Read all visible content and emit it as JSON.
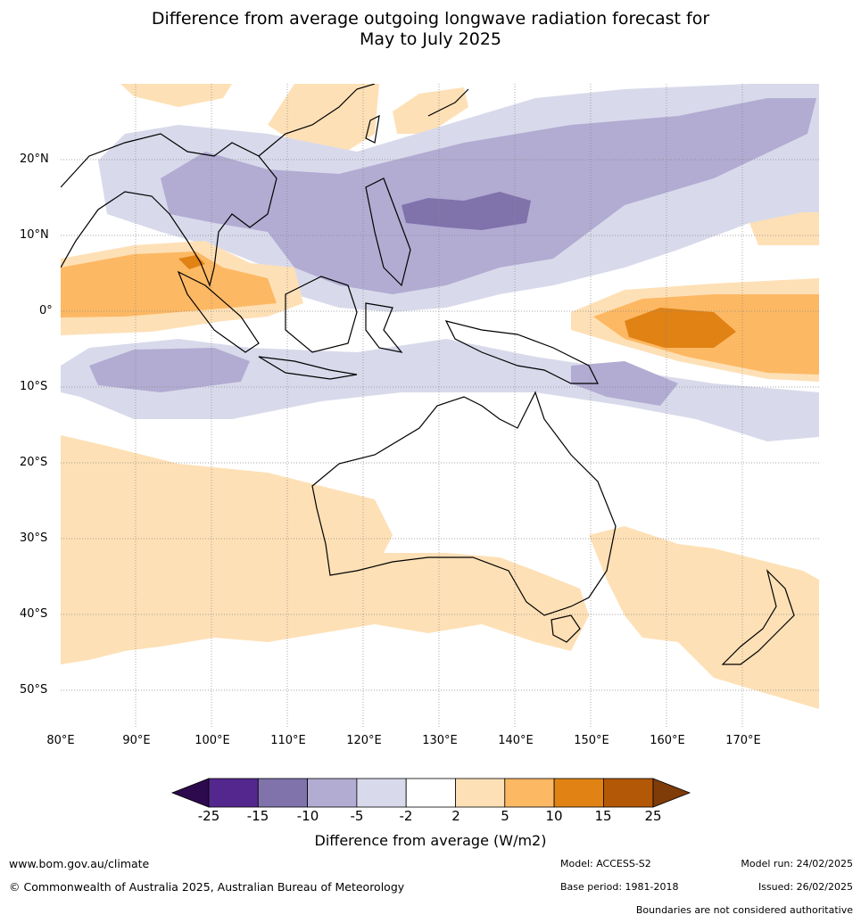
{
  "title_line1": "Difference from average outgoing longwave radiation forecast for",
  "title_line2": "May to July 2025",
  "lat_labels": [
    "20°N",
    "10°N",
    "0°",
    "10°S",
    "20°S",
    "30°S",
    "40°S",
    "50°S"
  ],
  "lon_labels": [
    "80°E",
    "90°E",
    "100°E",
    "110°E",
    "120°E",
    "130°E",
    "140°E",
    "150°E",
    "160°E",
    "170°E"
  ],
  "colorbar": {
    "ticks": [
      "-25",
      "-15",
      "-10",
      "-5",
      "-2",
      "2",
      "5",
      "10",
      "15",
      "25"
    ],
    "colors": [
      "#2d0a4e",
      "#54278f",
      "#8073ac",
      "#b2abd2",
      "#d8daeb",
      "#ffffff",
      "#fee0b6",
      "#fdb863",
      "#e08214",
      "#b35806",
      "#7f3b08"
    ],
    "title": "Difference from average (W/m2)"
  },
  "footer": {
    "url": "www.bom.gov.au/climate",
    "copyright": "© Commonwealth of Australia 2025, Australian Bureau of Meteorology",
    "model": "Model: ACCESS-S2",
    "base_period": "Base period: 1981-2018",
    "model_run": "Model run: 24/02/2025",
    "issued": "Issued: 26/02/2025",
    "boundaries": "Boundaries are not considered authoritative"
  }
}
